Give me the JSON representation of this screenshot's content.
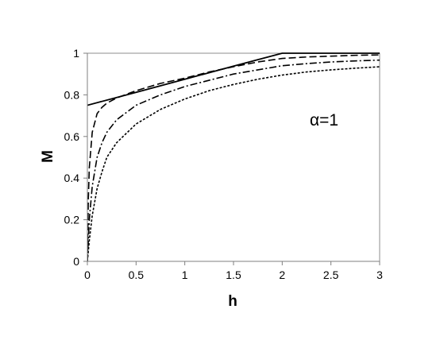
{
  "chart_data": {
    "type": "line",
    "title": "",
    "xlabel": "h",
    "ylabel": "M",
    "xlim": [
      0,
      3
    ],
    "ylim": [
      0,
      1
    ],
    "x_ticks": [
      "0",
      "0.5",
      "1",
      "1.5",
      "2",
      "2.5",
      "3"
    ],
    "y_ticks": [
      "0",
      "0.2",
      "0.4",
      "0.6",
      "0.8",
      "1"
    ],
    "grid": false,
    "legend": "none",
    "annotation": "α=1",
    "series": [
      {
        "style": "solid",
        "x": [
          0,
          0.5,
          1,
          1.5,
          1.8,
          2,
          2.5,
          3
        ],
        "y": [
          0.75,
          0.812,
          0.875,
          0.938,
          0.975,
          1,
          1,
          1
        ]
      },
      {
        "style": "long-dash",
        "x": [
          0,
          0.01,
          0.02,
          0.05,
          0.1,
          0.15,
          0.2,
          0.3,
          0.5,
          0.75,
          1,
          1.25,
          1.5,
          1.75,
          2,
          2.25,
          2.5,
          2.75,
          3
        ],
        "y": [
          0,
          0.3,
          0.45,
          0.62,
          0.71,
          0.74,
          0.76,
          0.785,
          0.82,
          0.855,
          0.88,
          0.91,
          0.935,
          0.958,
          0.975,
          0.982,
          0.986,
          0.99,
          0.992
        ]
      },
      {
        "style": "dash-dot",
        "x": [
          0,
          0.02,
          0.05,
          0.1,
          0.15,
          0.2,
          0.3,
          0.5,
          0.75,
          1,
          1.25,
          1.5,
          1.75,
          2,
          2.25,
          2.5,
          2.75,
          3
        ],
        "y": [
          0,
          0.2,
          0.36,
          0.5,
          0.57,
          0.62,
          0.68,
          0.75,
          0.8,
          0.84,
          0.87,
          0.9,
          0.92,
          0.94,
          0.95,
          0.958,
          0.963,
          0.967
        ]
      },
      {
        "style": "dotted",
        "x": [
          0,
          0.02,
          0.05,
          0.1,
          0.15,
          0.2,
          0.3,
          0.5,
          0.75,
          1,
          1.25,
          1.5,
          1.75,
          2,
          2.25,
          2.5,
          2.75,
          3
        ],
        "y": [
          0,
          0.1,
          0.22,
          0.35,
          0.43,
          0.5,
          0.57,
          0.66,
          0.73,
          0.78,
          0.82,
          0.85,
          0.875,
          0.895,
          0.91,
          0.92,
          0.928,
          0.935
        ]
      }
    ]
  }
}
